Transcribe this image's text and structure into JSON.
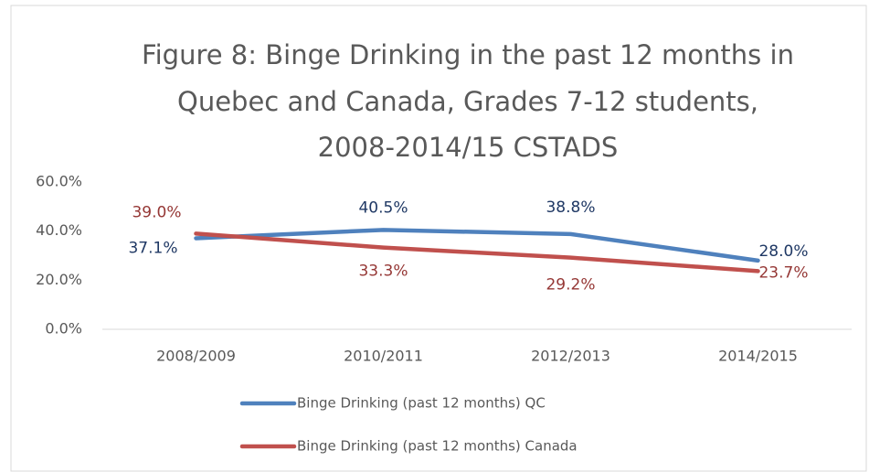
{
  "chart_data": {
    "type": "line",
    "title": [
      "Figure 8: Binge Drinking in the past 12 months in",
      "Quebec and Canada, Grades 7-12 students,",
      "2008-2014/15 CSTADS"
    ],
    "categories": [
      "2008/2009",
      "2010/2011",
      "2012/2013",
      "2014/2015"
    ],
    "series": [
      {
        "name": "Binge Drinking (past 12 months) QC",
        "color": "#4f81bd",
        "label_color": "#1f3864",
        "values": [
          37.1,
          40.5,
          38.8,
          28.0
        ],
        "value_labels": [
          "37.1%",
          "40.5%",
          "38.8%",
          "28.0%"
        ]
      },
      {
        "name": "Binge Drinking (past 12 months) Canada",
        "color": "#c0504d",
        "label_color": "#953735",
        "values": [
          39.0,
          33.3,
          29.2,
          23.7
        ],
        "value_labels": [
          "39.0%",
          "33.3%",
          "29.2%",
          "23.7%"
        ]
      }
    ],
    "ylim": [
      0,
      60
    ],
    "yticks": [
      {
        "value": 0,
        "label": "0.0%"
      },
      {
        "value": 20,
        "label": "20.0%"
      },
      {
        "value": 40,
        "label": "40.0%"
      },
      {
        "value": 60,
        "label": "60.0%"
      }
    ],
    "grid": false,
    "legend": "bottom"
  }
}
